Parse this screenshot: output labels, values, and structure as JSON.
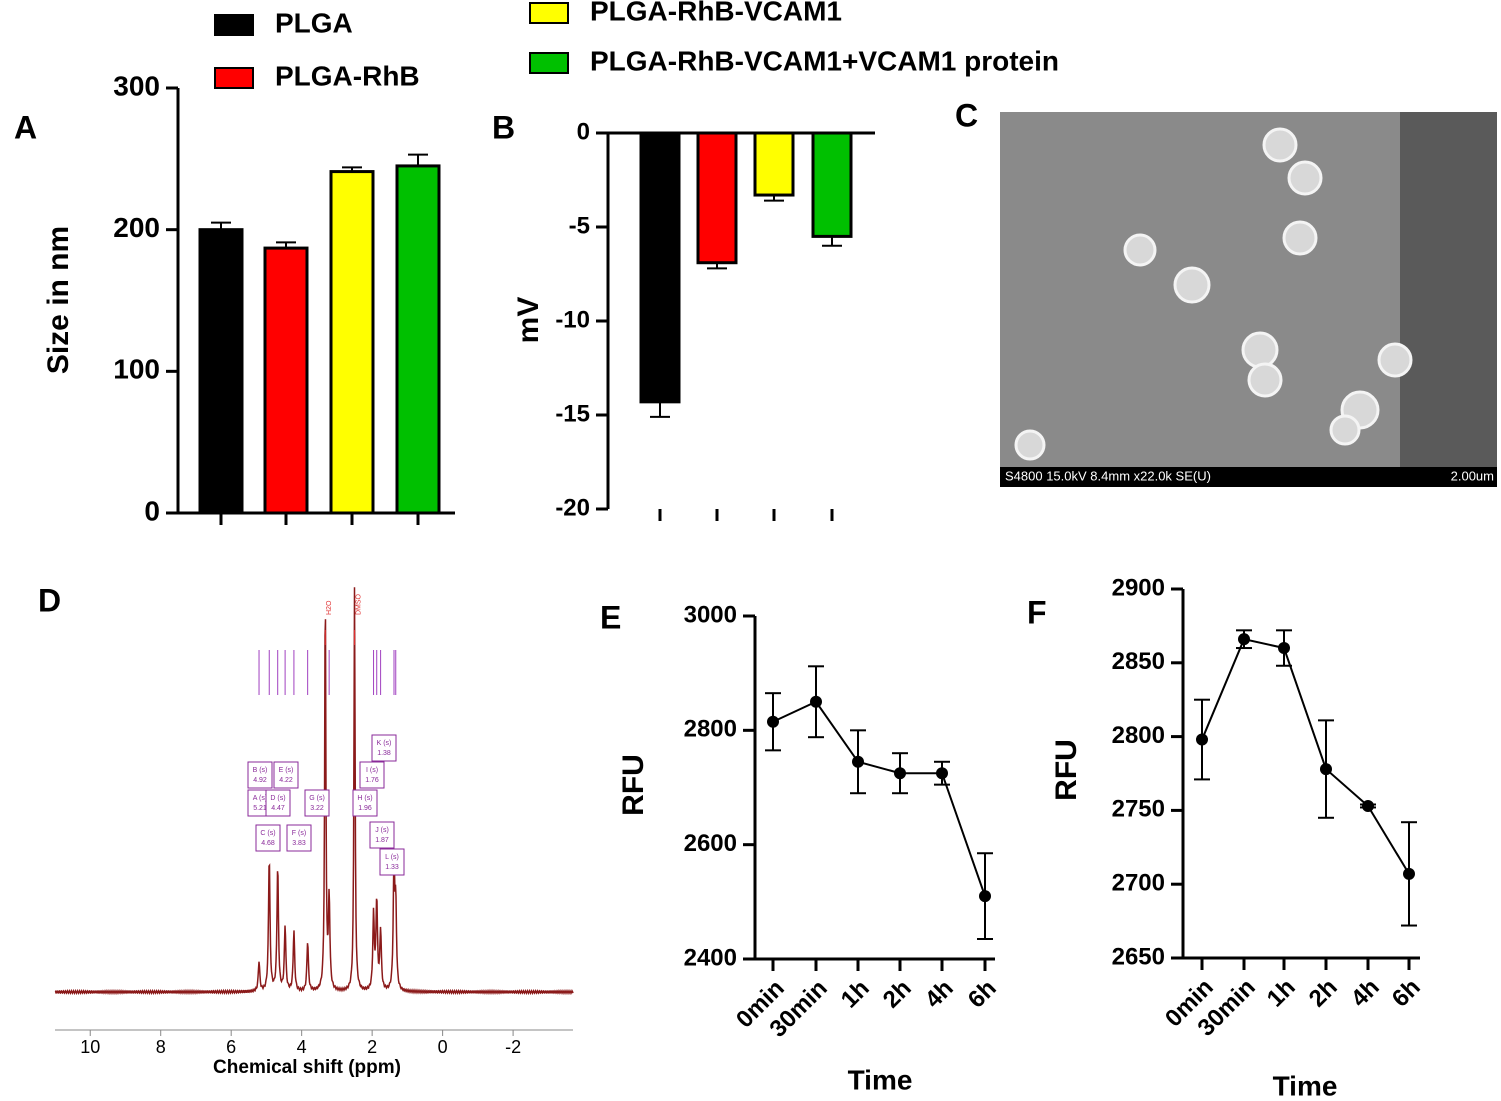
{
  "legend": [
    {
      "name": "PLGA",
      "color": "#000000"
    },
    {
      "name": "PLGA-RhB",
      "color": "#ff0000"
    },
    {
      "name": "PLGA-RhB-VCAM1",
      "color": "#ffff00"
    },
    {
      "name": "PLGA-RhB-VCAM1+VCAM1 protein",
      "color": "#00c000"
    }
  ],
  "chart_data": [
    {
      "panel": "A",
      "type": "bar",
      "ylabel": "Size in nm",
      "values": [
        200,
        187,
        241,
        245
      ],
      "errors": [
        5,
        4,
        3,
        8
      ],
      "colors": [
        "#000000",
        "#ff0000",
        "#ffff00",
        "#00c000"
      ],
      "ylim": [
        0,
        300
      ],
      "yticks": [
        0,
        100,
        200,
        300
      ]
    },
    {
      "panel": "B",
      "type": "bar",
      "ylabel": "mV",
      "values": [
        -14.3,
        -6.9,
        -3.3,
        -5.5
      ],
      "errors": [
        0.8,
        0.3,
        0.3,
        0.5
      ],
      "colors": [
        "#000000",
        "#ff0000",
        "#ffff00",
        "#00c000"
      ],
      "ylim": [
        -20,
        0
      ],
      "yticks": [
        -20,
        -15,
        -10,
        -5,
        0
      ]
    },
    {
      "panel": "E",
      "type": "line",
      "xlabel": "Time",
      "ylabel": "RFU",
      "categories": [
        "0min",
        "30min",
        "1h",
        "2h",
        "4h",
        "6h"
      ],
      "values": [
        2815,
        2850,
        2745,
        2725,
        2725,
        2510
      ],
      "errors": [
        50,
        62,
        55,
        35,
        20,
        75
      ],
      "color": "#000000",
      "ylim": [
        2400,
        3000
      ],
      "yticks": [
        2400,
        2600,
        2800,
        3000
      ]
    },
    {
      "panel": "F",
      "type": "line",
      "xlabel": "Time",
      "ylabel": "RFU",
      "categories": [
        "0min",
        "30min",
        "1h",
        "2h",
        "4h",
        "6h"
      ],
      "values": [
        2798,
        2866,
        2860,
        2778,
        2753,
        2707
      ],
      "errors": [
        27,
        6,
        12,
        33,
        1,
        35
      ],
      "color": "#000000",
      "ylim": [
        2650,
        2900
      ],
      "yticks": [
        2650,
        2700,
        2750,
        2800,
        2850,
        2900
      ]
    }
  ],
  "sem_image": {
    "panel": "C",
    "caption": "S4800 15.0kV 8.4mm x22.0k SE(U)",
    "scale_bar": "2.00um"
  },
  "nmr_spectrum": {
    "panel": "D",
    "xlabel": "Chemical shift (ppm)",
    "xlim": [
      11,
      -3.7
    ],
    "xticks": [
      10,
      8,
      6,
      4,
      2,
      0,
      -2
    ],
    "peaks": [
      {
        "label": "A (s)",
        "shift": 5.21
      },
      {
        "label": "B (s)",
        "shift": 4.92
      },
      {
        "label": "C (s)",
        "shift": 4.68
      },
      {
        "label": "D (s)",
        "shift": 4.47
      },
      {
        "label": "E (s)",
        "shift": 4.22
      },
      {
        "label": "F (s)",
        "shift": 3.83
      },
      {
        "label": "G (s)",
        "shift": 3.22
      },
      {
        "label": "H (s)",
        "shift": 1.96
      },
      {
        "label": "I (s)",
        "shift": 1.76
      },
      {
        "label": "J (s)",
        "shift": 1.87
      },
      {
        "label": "K (s)",
        "shift": 1.38
      },
      {
        "label": "L (s)",
        "shift": 1.33
      }
    ],
    "solvent_peaks": [
      {
        "label": "H2O",
        "shift": 3.33
      },
      {
        "label": "DMSO",
        "shift": 2.5
      }
    ]
  }
}
